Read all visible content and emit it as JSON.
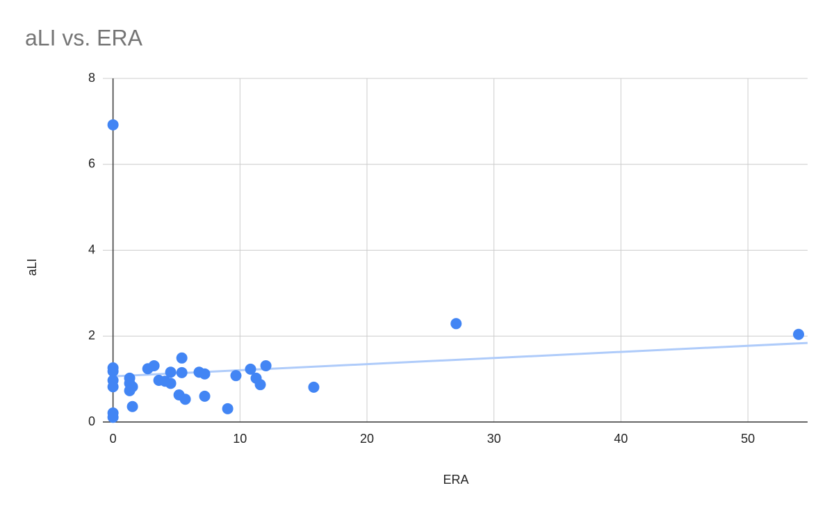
{
  "chart_data": {
    "type": "scatter",
    "title": "aLI vs. ERA",
    "x_label": "ERA",
    "y_label": "aLI",
    "color": "#4285f4",
    "trendline": true,
    "trendline_color": "#aecbfa",
    "grid": true,
    "x": [
      0,
      0,
      0,
      0,
      0,
      0,
      0,
      1.31,
      1.31,
      1.31,
      1.53,
      1.53,
      2.74,
      3.23,
      3.61,
      4.1,
      4.54,
      4.54,
      5.2,
      5.42,
      5.42,
      5.69,
      6.78,
      7.22,
      7.22,
      9.03,
      9.68,
      10.83,
      11.27,
      11.6,
      12.04,
      15.81,
      27.02,
      53.99
    ],
    "values": [
      6.92,
      1.26,
      1.18,
      0.97,
      0.82,
      0.21,
      0.11,
      1.02,
      0.9,
      0.73,
      0.82,
      0.36,
      1.24,
      1.31,
      0.97,
      0.95,
      1.16,
      0.9,
      0.63,
      1.49,
      1.15,
      0.53,
      1.16,
      1.12,
      0.6,
      0.31,
      1.08,
      1.23,
      1.02,
      0.87,
      1.31,
      0.81,
      2.29,
      2.04
    ],
    "xlim": [
      -0.8,
      54.7
    ],
    "xticks": [
      0,
      10,
      20,
      30,
      40,
      50
    ],
    "ylim": [
      0,
      8
    ],
    "yticks": [
      0,
      2,
      4,
      6,
      8
    ]
  }
}
